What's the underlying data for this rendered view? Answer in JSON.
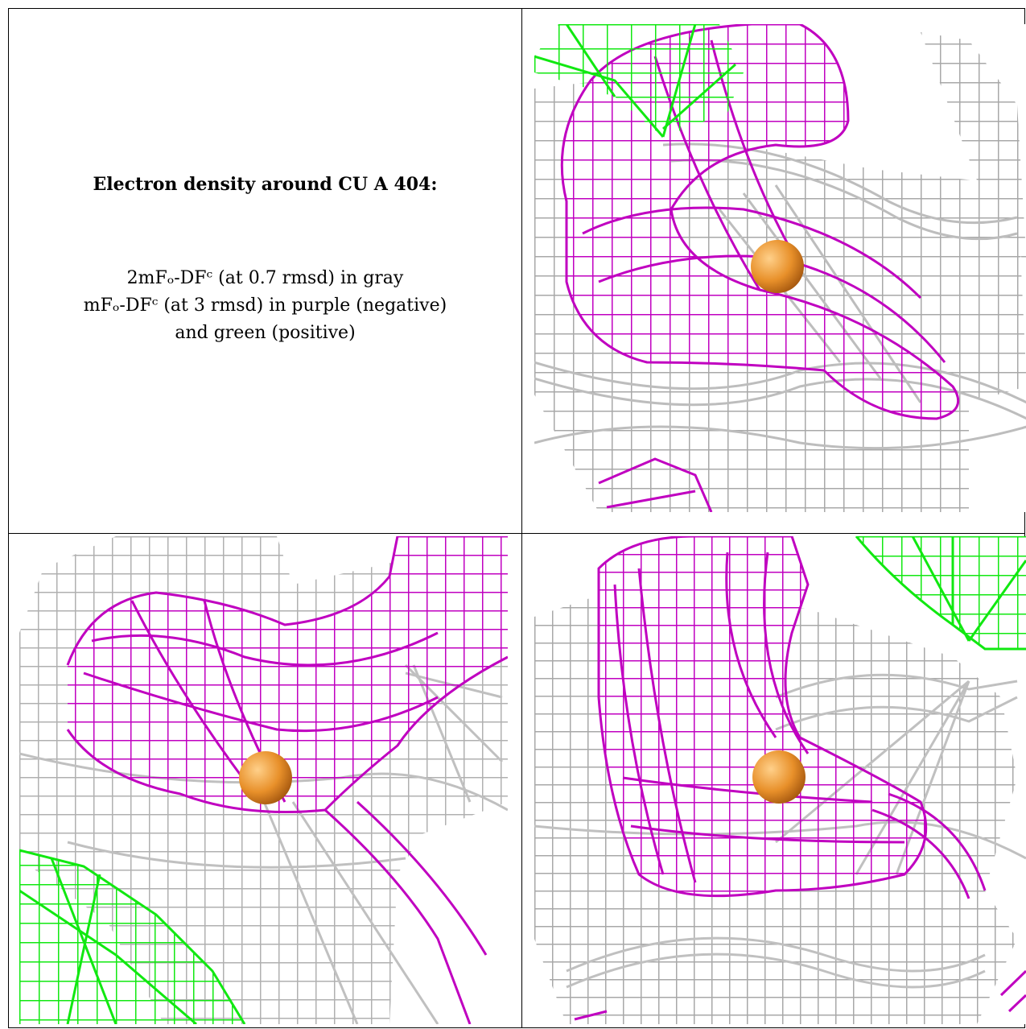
{
  "caption": {
    "title": "Electron density around CU A 404:",
    "line1": "2mFₒ-DFᶜ (at 0.7 rmsd) in gray",
    "line2": "mFₒ-DFᶜ (at 3 rmsd) in purple (negative)",
    "line3": "and green (positive)"
  },
  "panels": [
    {
      "name": "view-1",
      "atom": "CU A 404"
    },
    {
      "name": "view-2",
      "atom": "CU A 404"
    },
    {
      "name": "view-3",
      "atom": "CU A 404"
    }
  ],
  "colors": {
    "gray_mesh": "#9a9a9a",
    "gray_light": "#cfcfcf",
    "purple_mesh": "#c000c0",
    "green_mesh": "#11e811",
    "copper_atom": "#e8902a"
  }
}
